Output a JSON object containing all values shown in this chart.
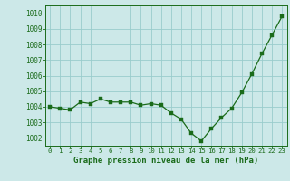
{
  "x": [
    0,
    1,
    2,
    3,
    4,
    5,
    6,
    7,
    8,
    9,
    10,
    11,
    12,
    13,
    14,
    15,
    16,
    17,
    18,
    19,
    20,
    21,
    22,
    23
  ],
  "y": [
    1004.0,
    1003.9,
    1003.8,
    1004.3,
    1004.2,
    1004.5,
    1004.3,
    1004.3,
    1004.3,
    1004.1,
    1004.2,
    1004.1,
    1003.6,
    1003.2,
    1002.3,
    1001.8,
    1002.6,
    1003.3,
    1003.9,
    1004.9,
    1006.1,
    1007.4,
    1008.6,
    1009.8
  ],
  "line_color": "#1a6b1a",
  "marker_color": "#1a6b1a",
  "bg_color": "#cce8e8",
  "grid_color": "#99cccc",
  "xlabel": "Graphe pression niveau de la mer (hPa)",
  "xlabel_color": "#1a6b1a",
  "tick_color": "#1a6b1a",
  "ylim": [
    1001.5,
    1010.5
  ],
  "xlim": [
    -0.5,
    23.5
  ],
  "yticks": [
    1002,
    1003,
    1004,
    1005,
    1006,
    1007,
    1008,
    1009,
    1010
  ],
  "ytick_labels": [
    "1002",
    "1003",
    "1004",
    "1005",
    "1006",
    "1007",
    "1008",
    "1009",
    "1010"
  ],
  "xticks": [
    0,
    1,
    2,
    3,
    4,
    5,
    6,
    7,
    8,
    9,
    10,
    11,
    12,
    13,
    14,
    15,
    16,
    17,
    18,
    19,
    20,
    21,
    22,
    23
  ],
  "marker_size": 2.5
}
